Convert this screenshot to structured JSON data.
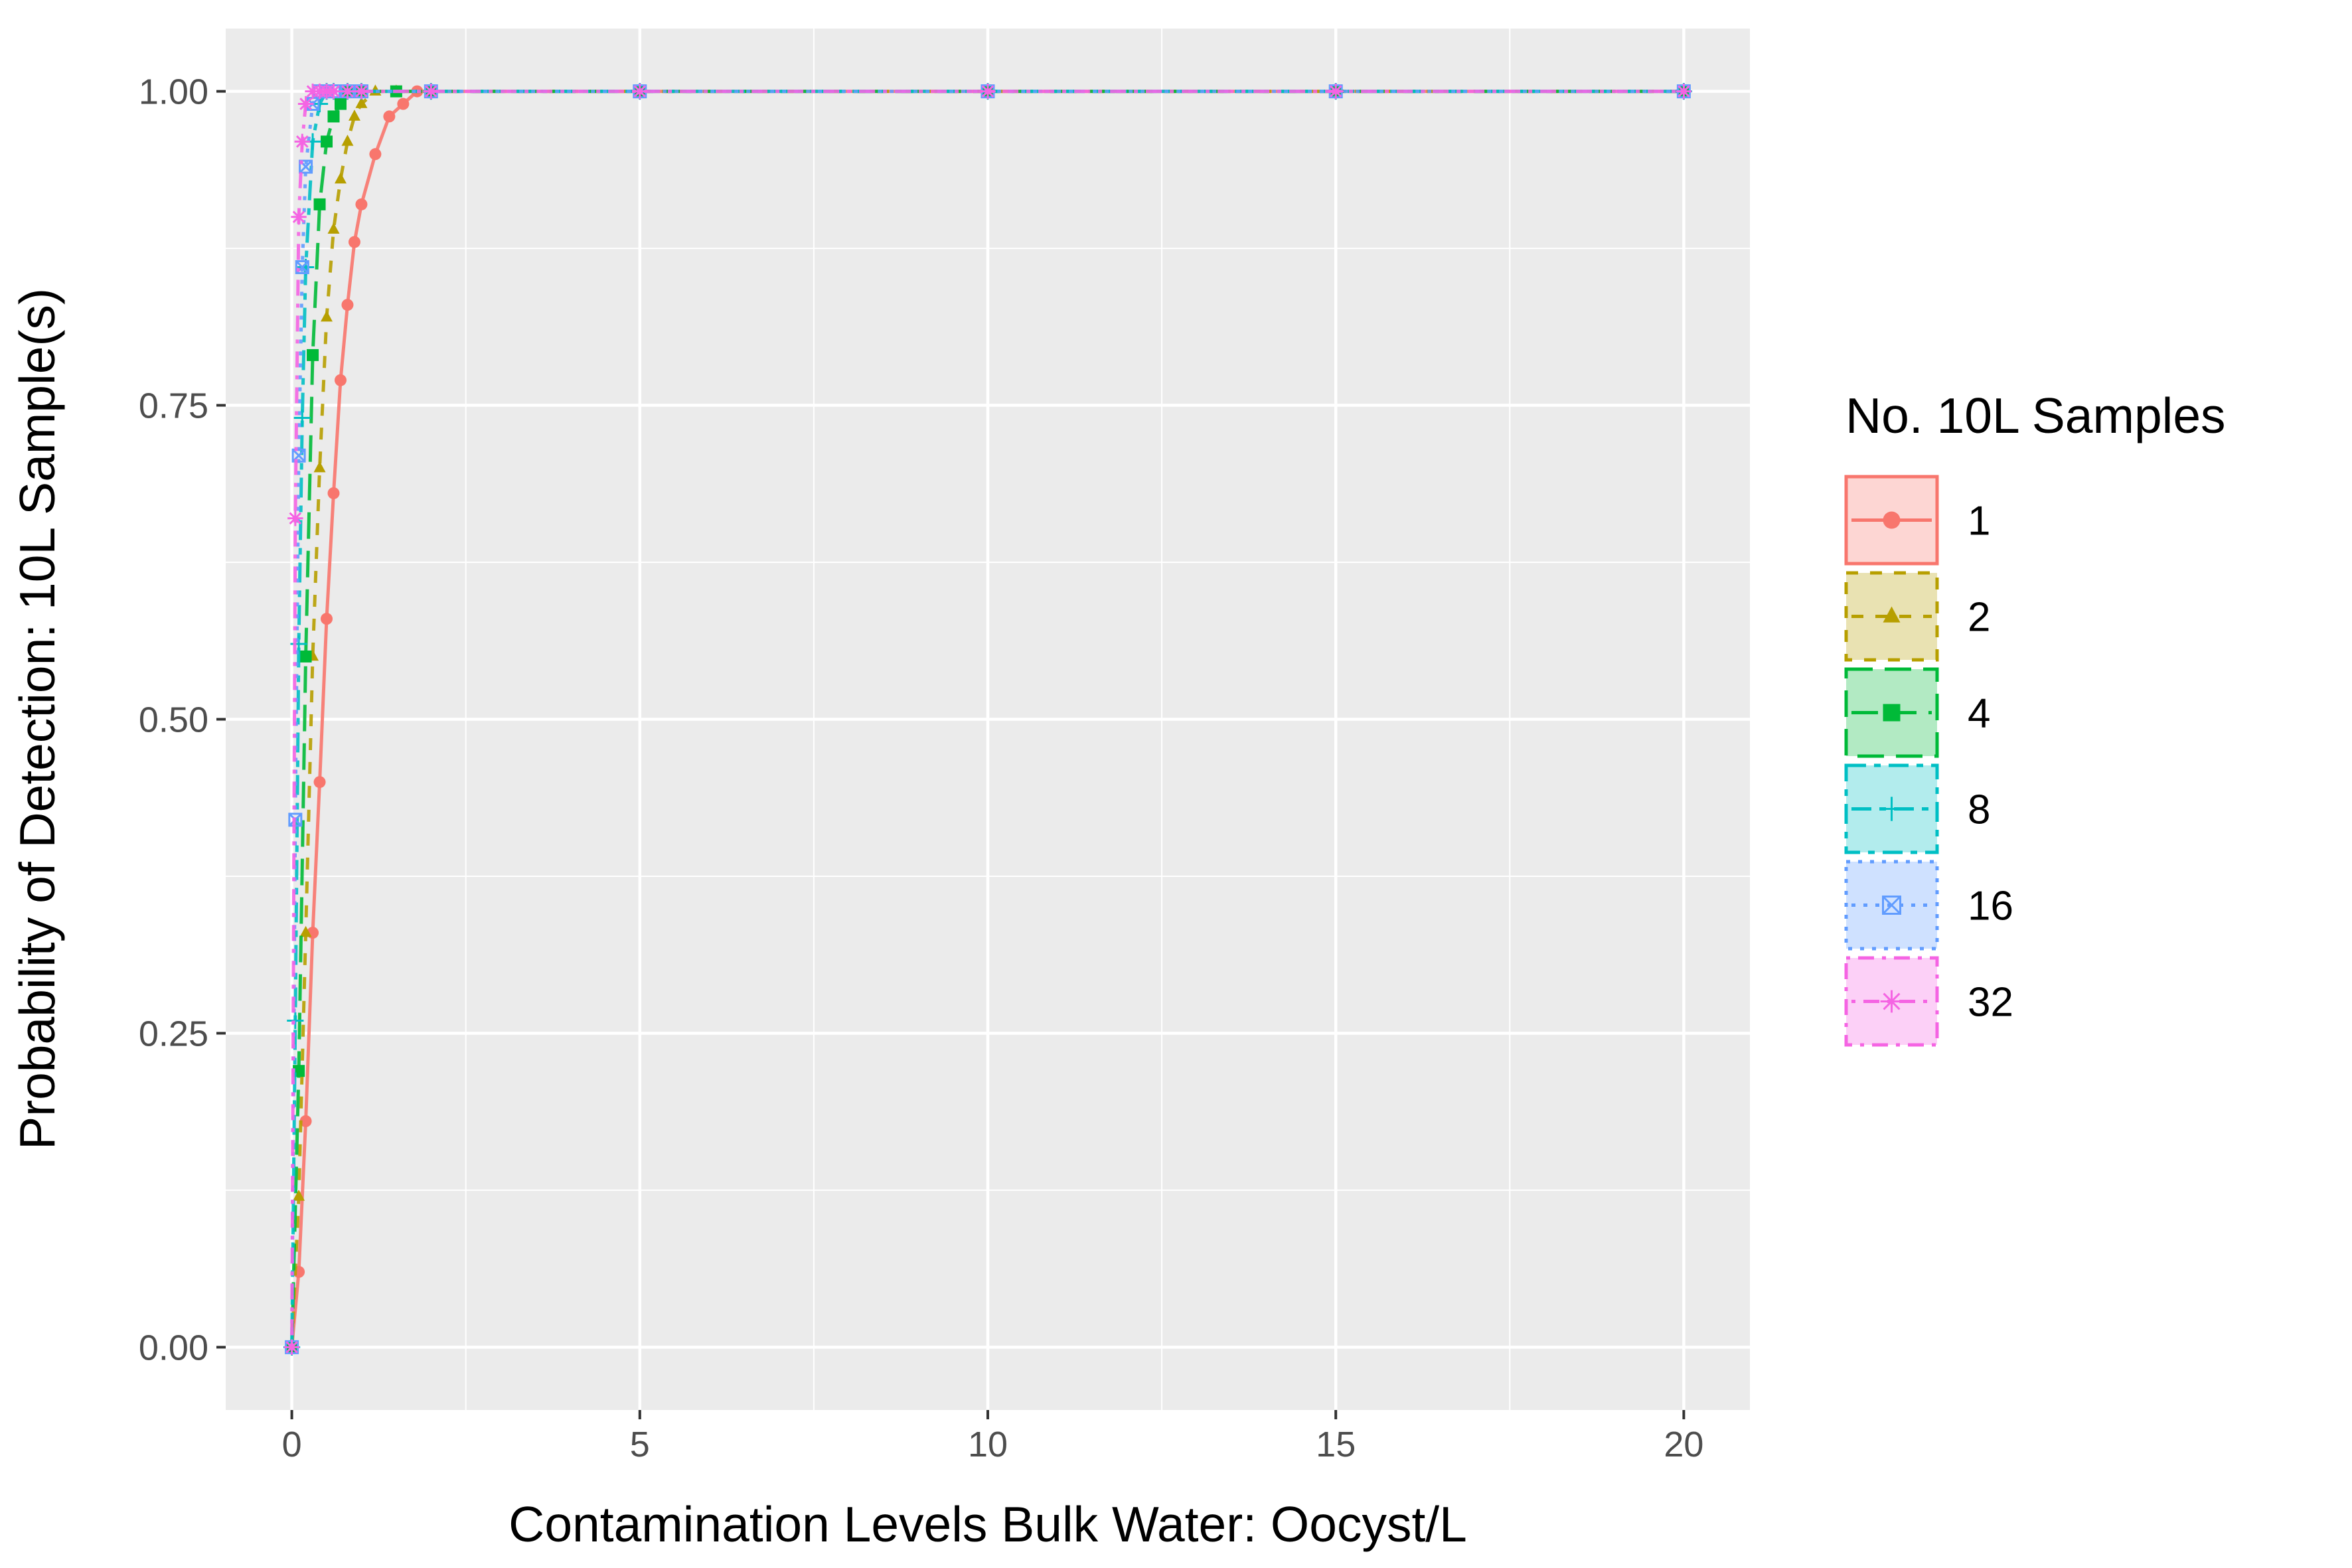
{
  "chart_data": {
    "type": "line",
    "xlabel": "Contamination Levels Bulk Water: Oocyst/L",
    "ylabel": "Probability of Detection: 10L Sample(s)",
    "xlim": [
      -0.95,
      20.95
    ],
    "ylim": [
      -0.05,
      1.05
    ],
    "x_ticks": [
      0,
      5,
      10,
      15,
      20
    ],
    "x_tick_labels": [
      "0",
      "5",
      "10",
      "15",
      "20"
    ],
    "y_ticks": [
      0,
      0.25,
      0.5,
      0.75,
      1.0
    ],
    "y_tick_labels": [
      "0.00",
      "0.25",
      "0.50",
      "0.75",
      "1.00"
    ],
    "grid": true,
    "background": "#EBEBEB",
    "legend": {
      "title": "No. 10L Samples",
      "position": "right"
    },
    "series": [
      {
        "name": "1",
        "color": "#F8766D",
        "linetype": "solid",
        "shape": "circle",
        "x": [
          0,
          0.1,
          0.2,
          0.3,
          0.4,
          0.5,
          0.6,
          0.7,
          0.8,
          0.9,
          1.0,
          1.2,
          1.4,
          1.6,
          1.8,
          2.0,
          5,
          10,
          15,
          20
        ],
        "y": [
          0,
          0.06,
          0.18,
          0.33,
          0.45,
          0.58,
          0.68,
          0.77,
          0.83,
          0.88,
          0.91,
          0.95,
          0.98,
          0.99,
          1.0,
          1.0,
          1.0,
          1.0,
          1.0,
          1.0
        ]
      },
      {
        "name": "2",
        "color": "#B79F00",
        "linetype": "dashed",
        "shape": "triangle",
        "x": [
          0,
          0.1,
          0.2,
          0.3,
          0.4,
          0.5,
          0.6,
          0.7,
          0.8,
          0.9,
          1.0,
          1.2,
          1.5,
          2.0,
          5,
          10,
          15,
          20
        ],
        "y": [
          0,
          0.12,
          0.33,
          0.55,
          0.7,
          0.82,
          0.89,
          0.93,
          0.96,
          0.98,
          0.99,
          1.0,
          1.0,
          1.0,
          1.0,
          1.0,
          1.0,
          1.0
        ]
      },
      {
        "name": "4",
        "color": "#00BA38",
        "linetype": "longdash",
        "shape": "square",
        "x": [
          0,
          0.1,
          0.2,
          0.3,
          0.4,
          0.5,
          0.6,
          0.7,
          0.8,
          1.0,
          1.5,
          2.0,
          5,
          10,
          15,
          20
        ],
        "y": [
          0,
          0.22,
          0.55,
          0.79,
          0.91,
          0.96,
          0.98,
          0.99,
          1.0,
          1.0,
          1.0,
          1.0,
          1.0,
          1.0,
          1.0,
          1.0
        ]
      },
      {
        "name": "8",
        "color": "#00BFC4",
        "linetype": "twodash",
        "shape": "plus",
        "x": [
          0,
          0.05,
          0.1,
          0.15,
          0.2,
          0.3,
          0.4,
          0.5,
          0.6,
          0.8,
          1.0,
          2.0,
          5,
          10,
          15,
          20
        ],
        "y": [
          0,
          0.26,
          0.56,
          0.74,
          0.86,
          0.96,
          0.99,
          1.0,
          1.0,
          1.0,
          1.0,
          1.0,
          1.0,
          1.0,
          1.0,
          1.0
        ]
      },
      {
        "name": "16",
        "color": "#619CFF",
        "linetype": "dotted",
        "shape": "square-cross",
        "x": [
          0,
          0.05,
          0.1,
          0.15,
          0.2,
          0.3,
          0.4,
          0.5,
          0.6,
          0.8,
          1.0,
          2.0,
          5,
          10,
          15,
          20
        ],
        "y": [
          0,
          0.42,
          0.71,
          0.86,
          0.94,
          0.99,
          1.0,
          1.0,
          1.0,
          1.0,
          1.0,
          1.0,
          1.0,
          1.0,
          1.0,
          1.0
        ]
      },
      {
        "name": "32",
        "color": "#F564E3",
        "linetype": "dotdash",
        "shape": "asterisk",
        "x": [
          0,
          0.05,
          0.1,
          0.15,
          0.2,
          0.3,
          0.4,
          0.5,
          0.6,
          0.8,
          1.0,
          2.0,
          5,
          10,
          15,
          20
        ],
        "y": [
          0,
          0.66,
          0.9,
          0.96,
          0.99,
          1.0,
          1.0,
          1.0,
          1.0,
          1.0,
          1.0,
          1.0,
          1.0,
          1.0,
          1.0,
          1.0
        ]
      }
    ]
  }
}
